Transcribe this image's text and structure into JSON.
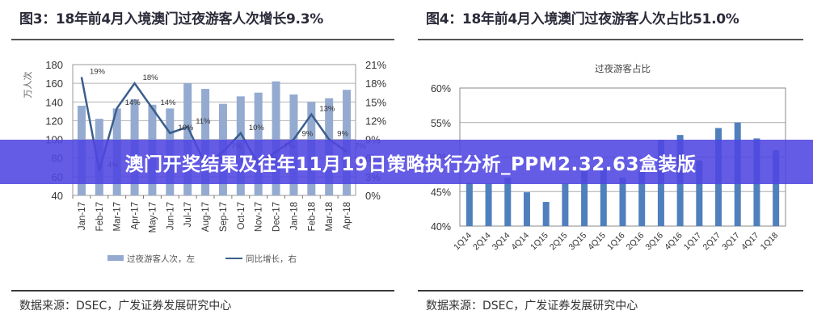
{
  "left_panel": {
    "title": "图3：18年前4月入境澳门过夜游客人次增长9.3%",
    "source": "数据来源：DSEC，广发证券发展研究中心"
  },
  "right_panel": {
    "title": "图4：18年前4月入境澳门过夜游客人次占比51.0%",
    "source": "数据来源：DSEC，广发证券发展研究中心"
  },
  "banner": {
    "text": "澳门开奖结果及往年11月19日策略执行分析_PPM2.32.63盒装版"
  },
  "colors": {
    "bar_left": "#94aad0",
    "line_left": "#3a5e8c",
    "bar_right": "#4f80bd",
    "banner_bg": "#5046e1"
  },
  "chart_data": [
    {
      "type": "bar+line",
      "title": "图3：18年前4月入境澳门过夜游客人次增长9.3%",
      "categories": [
        "Jan-17",
        "Feb-17",
        "Mar-17",
        "Apr-17",
        "May-17",
        "Jun-17",
        "Jul-17",
        "Aug-17",
        "Sep-17",
        "Oct-17",
        "Nov-17",
        "Dec-17",
        "Jan-18",
        "Feb-18",
        "Mar-18",
        "Apr-18"
      ],
      "ylabel": "万人次",
      "ylim": [
        40,
        180
      ],
      "yticks": [
        40,
        60,
        80,
        100,
        120,
        140,
        160,
        180
      ],
      "y2lim": [
        0,
        21
      ],
      "y2ticks": [
        "0%",
        "3%",
        "6%",
        "9%",
        "12%",
        "15%",
        "18%",
        "21%"
      ],
      "series": [
        {
          "name": "过夜游客人次，左",
          "type": "bar",
          "axis": "left",
          "values": [
            136,
            122,
            133,
            143,
            137,
            133,
            160,
            154,
            138,
            146,
            150,
            162,
            148,
            140,
            144,
            153
          ]
        },
        {
          "name": "同比增长，右",
          "type": "line",
          "axis": "right",
          "values": [
            19,
            4,
            14,
            18,
            14,
            10,
            11,
            5,
            7,
            10,
            5,
            7,
            9,
            13,
            9,
            7
          ],
          "labels": [
            "19%",
            "4%",
            "14%",
            "18%",
            "14%",
            "10%",
            "11%",
            "5%",
            "7%",
            "10%",
            "5%",
            "7%",
            "9%",
            "13%",
            "9%",
            "7%"
          ]
        }
      ],
      "legend": [
        "过夜游客人次，左",
        "同比增长，右"
      ],
      "legend_position": "bottom",
      "grid": true
    },
    {
      "type": "bar",
      "title": "过夜游客占比",
      "categories": [
        "1Q14",
        "2Q14",
        "3Q14",
        "4Q14",
        "1Q15",
        "2Q15",
        "3Q15",
        "4Q15",
        "1Q16",
        "2Q16",
        "3Q16",
        "4Q16",
        "1Q17",
        "2Q17",
        "3Q17",
        "4Q17",
        "1Q18"
      ],
      "values": [
        46.3,
        46.2,
        47.0,
        44.9,
        43.5,
        46.2,
        48.0,
        48.3,
        47.0,
        48.0,
        52.5,
        53.2,
        49.5,
        54.2,
        55.0,
        52.7,
        51.0
      ],
      "ylim": [
        40,
        60
      ],
      "yticks": [
        "40%",
        "45%",
        "50%",
        "55%",
        "60%"
      ],
      "grid": true
    }
  ]
}
